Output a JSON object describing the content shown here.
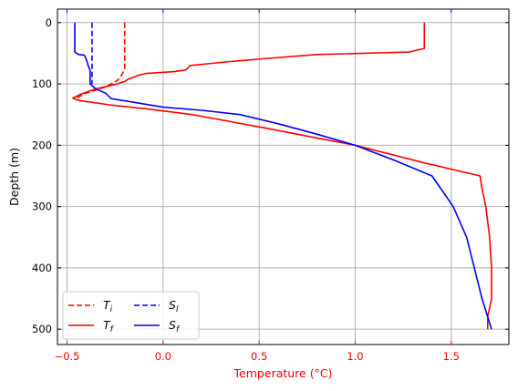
{
  "chart_data": {
    "type": "line",
    "xlabel": "Temperature (°C)",
    "ylabel": "Depth (m)",
    "xlim": [
      -0.55,
      1.8
    ],
    "ylim": [
      525,
      -22
    ],
    "y_inverted": true,
    "grid": true,
    "x_ticks": [
      -0.5,
      0.0,
      0.5,
      1.0,
      1.5
    ],
    "x_tick_labels": [
      "−0.5",
      "0.0",
      "0.5",
      "1.0",
      "1.5"
    ],
    "y_ticks": [
      0,
      100,
      200,
      300,
      400,
      500
    ],
    "y_tick_labels": [
      "0",
      "100",
      "200",
      "300",
      "400",
      "500"
    ],
    "top_axis_ticks_color": "#0000ff",
    "x_axis_color": "#ff0000",
    "legend": {
      "placement": "lower-left",
      "columns": 2
    },
    "series": [
      {
        "name": "Ti",
        "sub": "i",
        "color": "#ff0000",
        "dash": true,
        "points": [
          [
            -0.2,
            0
          ],
          [
            -0.2,
            20
          ],
          [
            -0.2,
            40
          ],
          [
            -0.2,
            60
          ],
          [
            -0.2,
            75
          ],
          [
            -0.21,
            82
          ],
          [
            -0.22,
            88
          ],
          [
            -0.24,
            95
          ],
          [
            -0.27,
            100
          ],
          [
            -0.31,
            106
          ],
          [
            -0.36,
            111
          ],
          [
            -0.41,
            116
          ],
          [
            -0.45,
            123
          ],
          [
            -0.44,
            127
          ],
          [
            -0.4,
            129
          ]
        ]
      },
      {
        "name": "Tf",
        "sub": "f",
        "color": "#ff0000",
        "dash": false,
        "points": [
          [
            1.36,
            0
          ],
          [
            1.36,
            42
          ],
          [
            1.28,
            48
          ],
          [
            0.8,
            52
          ],
          [
            0.52,
            59
          ],
          [
            0.3,
            65
          ],
          [
            0.14,
            70
          ],
          [
            0.12,
            77
          ],
          [
            0.06,
            80
          ],
          [
            -0.09,
            83
          ],
          [
            -0.13,
            86
          ],
          [
            -0.18,
            92
          ],
          [
            -0.2,
            96
          ],
          [
            -0.25,
            101
          ],
          [
            -0.35,
            108
          ],
          [
            -0.43,
            117
          ],
          [
            -0.47,
            123
          ],
          [
            -0.44,
            127
          ],
          [
            -0.28,
            134
          ],
          [
            -0.05,
            142
          ],
          [
            0.15,
            150
          ],
          [
            0.5,
            170
          ],
          [
            0.75,
            185
          ],
          [
            1.0,
            200
          ],
          [
            1.35,
            228
          ],
          [
            1.65,
            250
          ],
          [
            1.66,
            270
          ],
          [
            1.68,
            300
          ],
          [
            1.7,
            350
          ],
          [
            1.71,
            400
          ],
          [
            1.71,
            450
          ],
          [
            1.69,
            480
          ],
          [
            1.69,
            500
          ]
        ]
      },
      {
        "name": "Sl",
        "sub": "l",
        "color": "#0000ff",
        "dash": true,
        "points": [
          [
            -0.37,
            0
          ],
          [
            -0.37,
            30
          ],
          [
            -0.37,
            60
          ],
          [
            -0.37,
            80
          ],
          [
            -0.37,
            100
          ]
        ]
      },
      {
        "name": "Sf",
        "sub": "f",
        "color": "#0000ff",
        "dash": false,
        "points": [
          [
            -0.46,
            0
          ],
          [
            -0.46,
            48
          ],
          [
            -0.44,
            52
          ],
          [
            -0.41,
            53
          ],
          [
            -0.4,
            60
          ],
          [
            -0.39,
            70
          ],
          [
            -0.38,
            78
          ],
          [
            -0.38,
            90
          ],
          [
            -0.38,
            100
          ],
          [
            -0.35,
            108
          ],
          [
            -0.3,
            115
          ],
          [
            -0.27,
            124
          ],
          [
            -0.15,
            130
          ],
          [
            0.0,
            138
          ],
          [
            0.2,
            143
          ],
          [
            0.4,
            150
          ],
          [
            0.6,
            165
          ],
          [
            0.8,
            182
          ],
          [
            1.0,
            200
          ],
          [
            1.2,
            224
          ],
          [
            1.4,
            250
          ],
          [
            1.51,
            300
          ],
          [
            1.58,
            350
          ],
          [
            1.62,
            400
          ],
          [
            1.66,
            450
          ],
          [
            1.71,
            500
          ]
        ]
      }
    ]
  }
}
